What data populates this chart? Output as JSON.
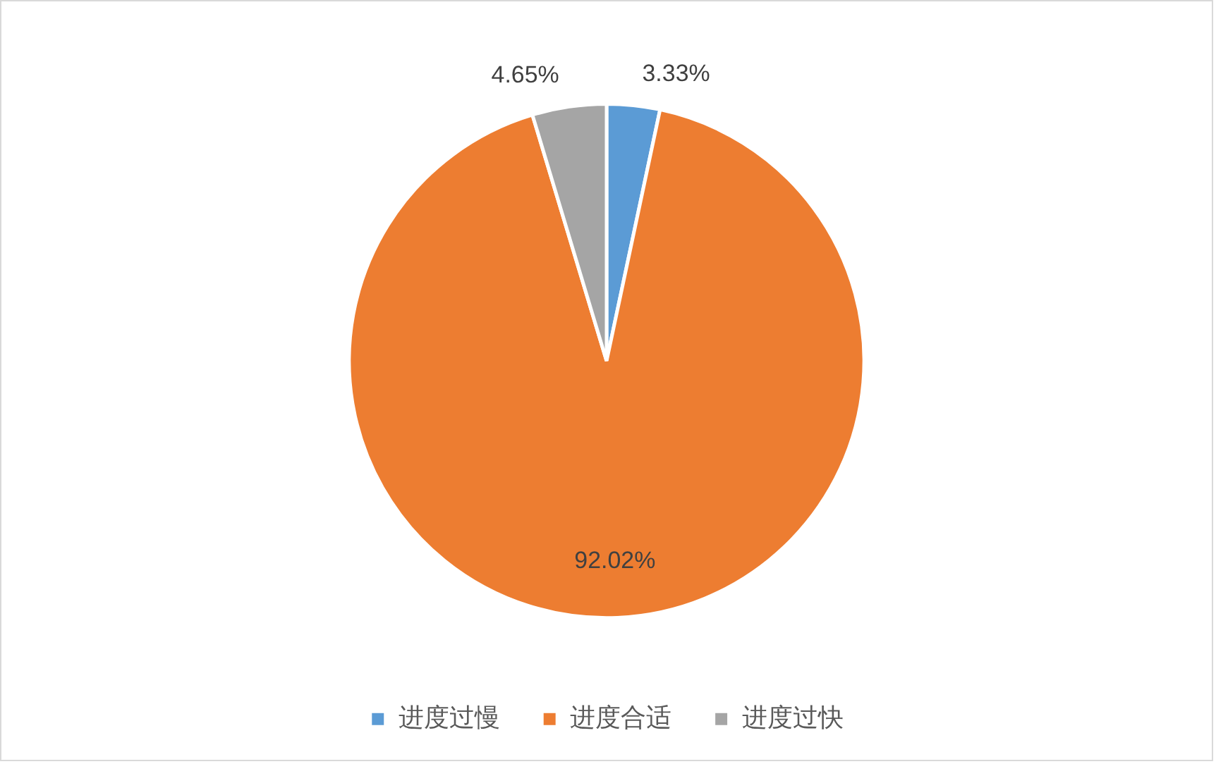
{
  "chart_data": {
    "type": "pie",
    "categories": [
      "进度过慢",
      "进度合适",
      "进度过快"
    ],
    "values": [
      3.33,
      92.02,
      4.65
    ],
    "colors": [
      "#5b9bd5",
      "#ed7d31",
      "#a5a5a5"
    ],
    "value_labels": [
      "3.33%",
      "92.02%",
      "4.65%"
    ],
    "legend": "bottom"
  }
}
